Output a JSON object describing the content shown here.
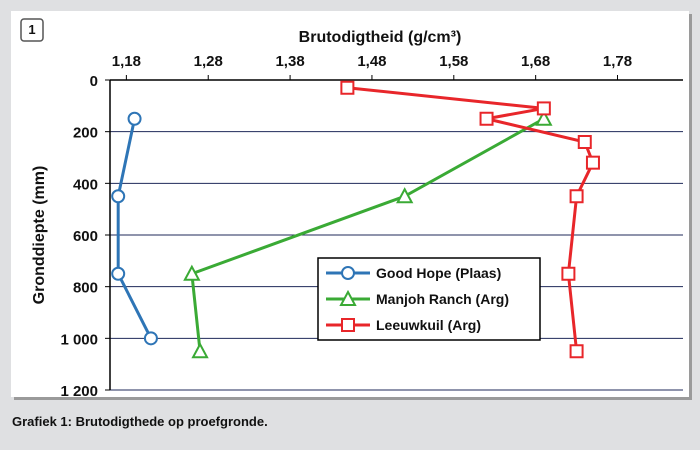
{
  "badge": "1",
  "caption": "Grafiek 1: Brutodigthede op proefgronde.",
  "chart_data": {
    "type": "line",
    "x_label": "Brutodigtheid (g/cm³)",
    "y_label": "Gronddiepte (mm)",
    "xlim": [
      1.16,
      1.86
    ],
    "xticks": [
      {
        "value": 1.18,
        "label": "1,18"
      },
      {
        "value": 1.28,
        "label": "1,28"
      },
      {
        "value": 1.38,
        "label": "1,38"
      },
      {
        "value": 1.48,
        "label": "1,48"
      },
      {
        "value": 1.58,
        "label": "1,58"
      },
      {
        "value": 1.68,
        "label": "1,68"
      },
      {
        "value": 1.78,
        "label": "1,78"
      }
    ],
    "ylim": [
      0,
      1200
    ],
    "y_reversed": true,
    "yticks": [
      0,
      200,
      400,
      600,
      800,
      {
        "value": 1000,
        "label": "1 000"
      },
      {
        "value": 1200,
        "label": "1 200"
      }
    ],
    "grid": true,
    "series": [
      {
        "name": "Good Hope (Plaas)",
        "color": "#2e75b6",
        "marker": "circle",
        "x": [
          1.19,
          1.17,
          1.17,
          1.21
        ],
        "values": [
          150,
          450,
          750,
          1000
        ]
      },
      {
        "name": "Manjoh Ranch (Arg)",
        "color": "#3aaa35",
        "marker": "triangle",
        "x": [
          1.69,
          1.52,
          1.26,
          1.27
        ],
        "values": [
          150,
          450,
          750,
          1050
        ]
      },
      {
        "name": "Leeuwkuil (Arg)",
        "color": "#e8262a",
        "marker": "square",
        "x": [
          1.45,
          1.69,
          1.62,
          1.74,
          1.75,
          1.73,
          1.72,
          1.73
        ],
        "values": [
          30,
          110,
          150,
          240,
          320,
          450,
          750,
          1050
        ]
      }
    ]
  }
}
